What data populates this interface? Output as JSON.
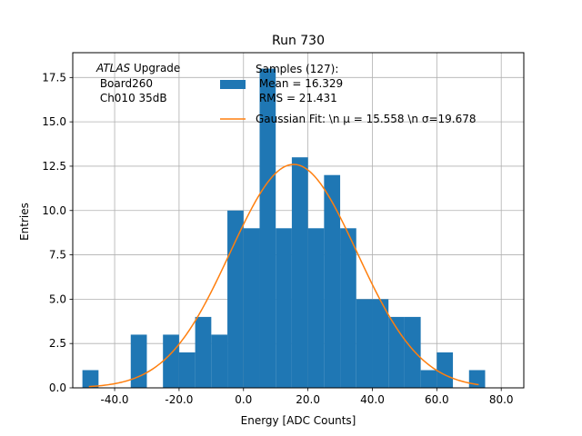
{
  "chart_data": {
    "type": "bar",
    "title": "Run 730",
    "xlabel": "Energy [ADC Counts]",
    "ylabel": "Entries",
    "xlim": [
      -53,
      87
    ],
    "ylim": [
      0,
      18.9
    ],
    "grid": true,
    "x_ticks": [
      -40,
      -20,
      0,
      20,
      40,
      60,
      80
    ],
    "x_tick_labels": [
      "-40.0",
      "-20.0",
      "0.0",
      "20.0",
      "40.0",
      "60.0",
      "80.0"
    ],
    "y_ticks": [
      0,
      2.5,
      5,
      7.5,
      10,
      12.5,
      15,
      17.5
    ],
    "y_tick_labels": [
      "0.0",
      "2.5",
      "5.0",
      "7.5",
      "10.0",
      "12.5",
      "15.0",
      "17.5"
    ],
    "bin_edges": [
      -50,
      -45,
      -40,
      -35,
      -30,
      -25,
      -20,
      -15,
      -10,
      -5,
      0,
      5,
      10,
      15,
      20,
      25,
      30,
      35,
      40,
      45,
      50,
      55,
      60,
      65,
      70,
      75
    ],
    "values": [
      1,
      0,
      0,
      3,
      0,
      3,
      2,
      4,
      3,
      10,
      9,
      18,
      9,
      13,
      9,
      12,
      9,
      5,
      5,
      4,
      4,
      1,
      2,
      0,
      1
    ],
    "fit": {
      "mu": 15.558,
      "sigma": 19.678,
      "amplitude": 12.6,
      "x_range": [
        -48,
        73
      ]
    },
    "annotation": {
      "italic": "ATLAS",
      "rest": " Upgrade",
      "line2": " Board260",
      "line3": " Ch010 35dB"
    },
    "legend": {
      "placement": "upper-right",
      "hist_label_lines": [
        "Samples (127):",
        " Mean = 16.329",
        " RMS = 21.431"
      ],
      "fit_label": "Gaussian Fit: \\n μ = 15.558 \\n σ=19.678"
    },
    "colors": {
      "bars": "#1f77b4",
      "fit": "#ff7f0e",
      "grid": "#b0b0b0"
    }
  }
}
